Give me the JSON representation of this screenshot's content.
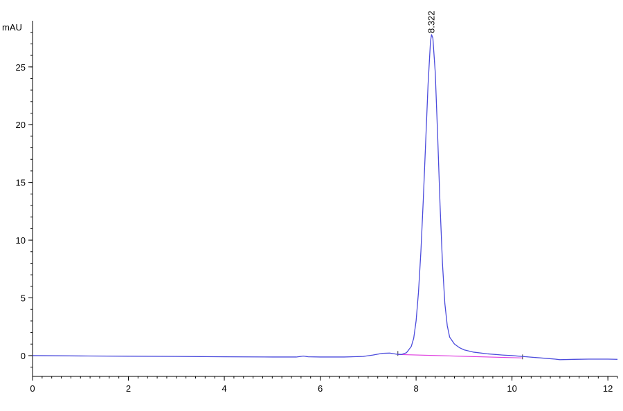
{
  "chart_data": {
    "type": "line",
    "title": "",
    "xlabel": "",
    "ylabel": "mAU",
    "xlim": [
      0,
      12.2
    ],
    "ylim": [
      -1.8,
      29
    ],
    "x_ticks": [
      0,
      2,
      4,
      6,
      8,
      10,
      12
    ],
    "y_ticks": [
      0,
      5,
      10,
      15,
      20,
      25
    ],
    "x_minor_step": 0.2,
    "y_minor_step": 1,
    "grid": false,
    "colors": {
      "signal": "#4b4bdc",
      "baseline": "#e040e0",
      "axis": "#000000"
    },
    "series": [
      {
        "points": [
          [
            0.0,
            0.0
          ],
          [
            1.0,
            -0.03
          ],
          [
            2.0,
            -0.05
          ],
          [
            3.0,
            -0.07
          ],
          [
            4.0,
            -0.1
          ],
          [
            5.0,
            -0.12
          ],
          [
            5.5,
            -0.12
          ],
          [
            5.65,
            -0.04
          ],
          [
            5.75,
            -0.1
          ],
          [
            6.0,
            -0.12
          ],
          [
            6.5,
            -0.12
          ],
          [
            6.9,
            -0.07
          ],
          [
            7.1,
            0.05
          ],
          [
            7.3,
            0.2
          ],
          [
            7.45,
            0.22
          ],
          [
            7.6,
            0.12
          ],
          [
            7.7,
            0.1
          ],
          [
            7.8,
            0.25
          ],
          [
            7.9,
            0.8
          ],
          [
            7.95,
            1.5
          ],
          [
            8.0,
            3.0
          ],
          [
            8.05,
            5.5
          ],
          [
            8.1,
            9.0
          ],
          [
            8.15,
            13.5
          ],
          [
            8.2,
            18.5
          ],
          [
            8.25,
            23.5
          ],
          [
            8.3,
            27.2
          ],
          [
            8.322,
            27.8
          ],
          [
            8.35,
            27.5
          ],
          [
            8.4,
            24.5
          ],
          [
            8.45,
            19.0
          ],
          [
            8.5,
            13.0
          ],
          [
            8.55,
            8.0
          ],
          [
            8.6,
            4.5
          ],
          [
            8.65,
            2.6
          ],
          [
            8.7,
            1.6
          ],
          [
            8.8,
            1.0
          ],
          [
            8.9,
            0.7
          ],
          [
            9.0,
            0.5
          ],
          [
            9.2,
            0.3
          ],
          [
            9.5,
            0.15
          ],
          [
            9.8,
            0.05
          ],
          [
            10.0,
            0.0
          ],
          [
            10.3,
            -0.1
          ],
          [
            10.6,
            -0.2
          ],
          [
            10.9,
            -0.3
          ],
          [
            11.0,
            -0.35
          ],
          [
            11.3,
            -0.32
          ],
          [
            11.6,
            -0.3
          ],
          [
            12.0,
            -0.3
          ],
          [
            12.2,
            -0.32
          ]
        ]
      }
    ],
    "baseline": [
      [
        7.62,
        0.1
      ],
      [
        10.22,
        -0.2
      ]
    ],
    "peaks": [
      {
        "x": 8.322,
        "y": 27.8,
        "label": "8.322"
      }
    ]
  }
}
